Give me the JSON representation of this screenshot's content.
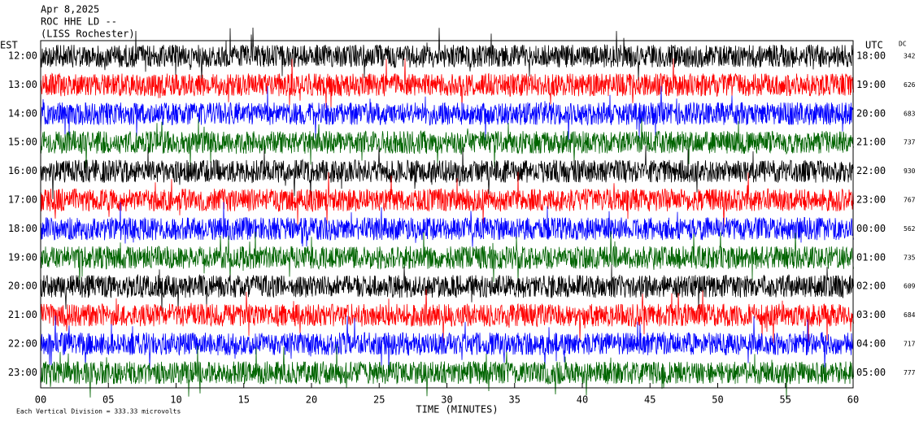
{
  "chart_data": {
    "type": "helicorder",
    "title_lines": [
      "Apr 8,2025",
      "ROC HHE LD --",
      "(LISS Rochester)"
    ],
    "left_axis_label": "EST",
    "right_axis_label": "UTC",
    "dc_label": "DC",
    "rows": [
      {
        "est": "12:00",
        "utc": "18:00",
        "dc": "342",
        "color": "#000000"
      },
      {
        "est": "13:00",
        "utc": "19:00",
        "dc": "626",
        "color": "#ff0000"
      },
      {
        "est": "14:00",
        "utc": "20:00",
        "dc": "683",
        "color": "#0000ff"
      },
      {
        "est": "15:00",
        "utc": "21:00",
        "dc": "737",
        "color": "#006400"
      },
      {
        "est": "16:00",
        "utc": "22:00",
        "dc": "930",
        "color": "#000000"
      },
      {
        "est": "17:00",
        "utc": "23:00",
        "dc": "767",
        "color": "#ff0000"
      },
      {
        "est": "18:00",
        "utc": "00:00",
        "dc": "562",
        "color": "#0000ff"
      },
      {
        "est": "19:00",
        "utc": "01:00",
        "dc": "735",
        "color": "#006400"
      },
      {
        "est": "20:00",
        "utc": "02:00",
        "dc": "609",
        "color": "#000000"
      },
      {
        "est": "21:00",
        "utc": "03:00",
        "dc": "684",
        "color": "#ff0000"
      },
      {
        "est": "22:00",
        "utc": "04:00",
        "dc": "717",
        "color": "#0000ff"
      },
      {
        "est": "23:00",
        "utc": "05:00",
        "dc": "777",
        "color": "#006400"
      }
    ],
    "xlabel": "TIME (MINUTES)",
    "xlim": [
      0,
      60
    ],
    "xticks": [
      {
        "value": 0,
        "label": "00"
      },
      {
        "value": 5,
        "label": "05"
      },
      10,
      15,
      20,
      25,
      30,
      35,
      40,
      45,
      50,
      55,
      60
    ],
    "footer": "Each Vertical Division =  333.33 microvolts"
  }
}
